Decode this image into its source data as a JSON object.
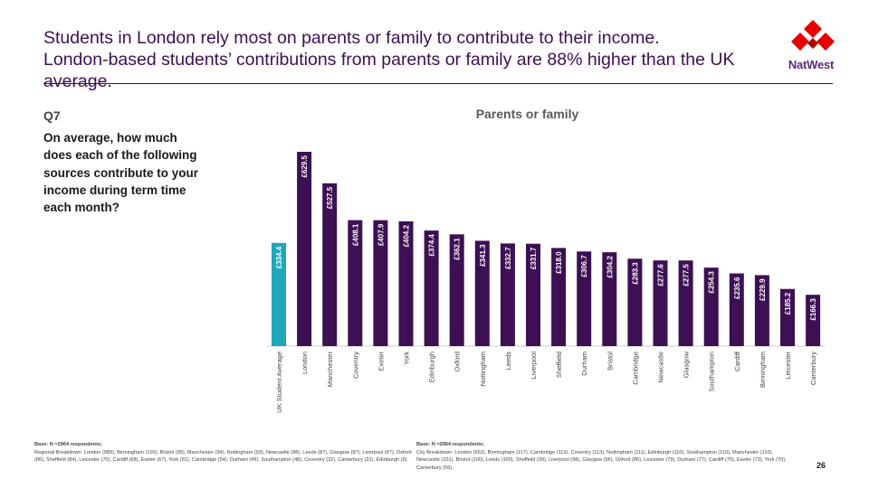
{
  "header": {
    "title_line1": "Students in London rely most on parents or family to contribute to their income.",
    "title_line2": "London-based students’ contributions from parents or family are 88% higher than the UK",
    "title_line3": "average.",
    "brand": "NatWest",
    "brand_color": "#e60000"
  },
  "question": {
    "number": "Q7",
    "text": "On average, how much does each of the following sources contribute to your income during term time each month?"
  },
  "chart_data": {
    "type": "bar",
    "title": "Parents or family",
    "categories": [
      "UK Student Average",
      "London",
      "Manchester",
      "Coventry",
      "Exeter",
      "York",
      "Edinburgh",
      "Oxford",
      "Nottingham",
      "Leeds",
      "Liverpool",
      "Sheffield",
      "Durham",
      "Bristol",
      "Cambridge",
      "Newcastle",
      "Glasgow",
      "Southampton",
      "Cardiff",
      "Birmingham",
      "Leicester",
      "Canterbury"
    ],
    "values": [
      334.4,
      629.5,
      527.5,
      408.1,
      407.9,
      404.2,
      374.4,
      362.1,
      341.3,
      332.7,
      331.7,
      318.0,
      306.7,
      304.2,
      283.3,
      277.6,
      277.5,
      254.3,
      235.6,
      229.9,
      185.2,
      166.3
    ],
    "data_labels": [
      "£334.4",
      "£629.5",
      "£527.5",
      "£408.1",
      "£407.9",
      "£404.2",
      "£374.4",
      "£362.1",
      "£341.3",
      "£332.7",
      "£331.7",
      "£318.0",
      "£306.7",
      "£304.2",
      "£283.3",
      "£277.6",
      "£277.5",
      "£254.3",
      "£235.6",
      "£229.9",
      "£185.2",
      "£166.3"
    ],
    "highlight_color": "#1ea7b8",
    "bar_color": "#3c1053",
    "ylim": [
      0,
      650
    ],
    "grid": false,
    "legend": "none"
  },
  "footer": {
    "left_head": "Base: N =2964 respondents;",
    "left_text": "Regional Breakdown: London (989), Birmingham (100), Bristol (95), Manchester (94), Nottingham (93), Newcastle (88), Leeds (87), Glasgow (87), Liverpool (87), Oxford (86), Sheffield (84), Leicester (70), Cardiff (68), Exeter (67), York (61), Cambridge (54), Durham (49), Southampton (48), Coventry (32), Canterbury (31), Edinburgh (9).",
    "right_head": "Base: N =2964 respondents;",
    "right_text": "City Breakdown: London (562), Birmingham (117), Cambridge (113), Coventry (113), Nottingham (111), Edinburgh (110), Southampton (110), Manchester (110), Newcastle (101), Bristol (100), Leeds (100), Sheffield (99), Liverpool (98), Glasgow (96), Oxford (86), Leicester (79), Durham (77), Cardiff (75), Exeter (73), York (70), Canterbury (56).",
    "page_number": "26"
  }
}
